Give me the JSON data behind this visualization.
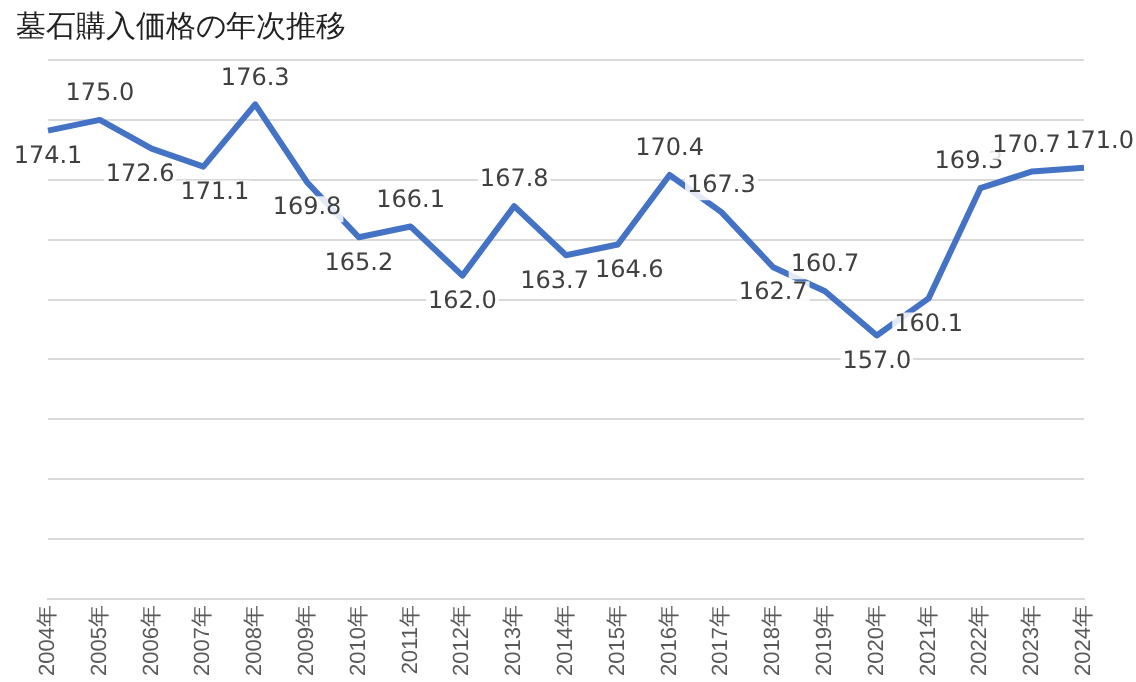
{
  "chart_data": {
    "type": "line",
    "title": "墓石購入価格の年次推移",
    "categories": [
      "2004年",
      "2005年",
      "2006年",
      "2007年",
      "2008年",
      "2009年",
      "2010年",
      "2011年",
      "2012年",
      "2013年",
      "2014年",
      "2015年",
      "2016年",
      "2017年",
      "2018年",
      "2019年",
      "2020年",
      "2021年",
      "2022年",
      "2023年",
      "2024年"
    ],
    "series": [
      {
        "color": "#4472c4",
        "values": [
          174.1,
          175.0,
          172.6,
          171.1,
          176.3,
          169.8,
          165.2,
          166.1,
          162.0,
          167.8,
          163.7,
          164.6,
          170.4,
          167.3,
          162.7,
          160.7,
          157.0,
          160.1,
          169.3,
          170.7,
          171.0
        ],
        "value_labels": [
          "174.1",
          "175.0",
          "172.6",
          "171.1",
          "176.3",
          "169.8",
          "165.2",
          "166.1",
          "162.0",
          "167.8",
          "163.7",
          "164.6",
          "170.4",
          "167.3",
          "162.7",
          "160.7",
          "157.0",
          "160.1",
          "169.3",
          "170.7",
          "171.0"
        ]
      }
    ],
    "ylim": [
      135,
      180
    ],
    "yticks": [
      {
        "value": 135,
        "label": null
      },
      {
        "value": 140,
        "label": null
      },
      {
        "value": 145,
        "label": null
      },
      {
        "value": 150,
        "label": null
      },
      {
        "value": 155,
        "label": null
      },
      {
        "value": 160,
        "label": null
      },
      {
        "value": 165,
        "label": null
      },
      {
        "value": 170,
        "label": null
      },
      {
        "value": 175,
        "label": null
      },
      {
        "value": 180,
        "label": null
      }
    ],
    "grid": "y",
    "tick_labels": "x",
    "marker": "none",
    "line_style": "solid",
    "legend": false
  }
}
